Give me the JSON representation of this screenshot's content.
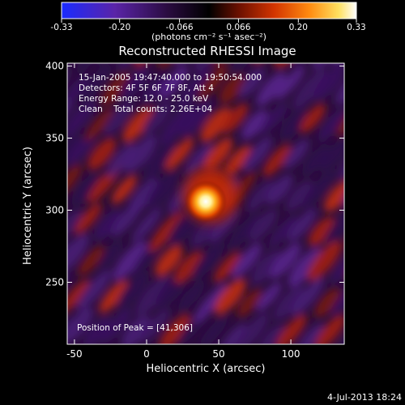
{
  "chart_data": {
    "type": "heatmap",
    "title": "Reconstructed RHESSI Image",
    "xlabel": "Heliocentric X (arcsec)",
    "ylabel": "Heliocentric Y (arcsec)",
    "xlim": [
      -55,
      137
    ],
    "ylim": [
      207,
      402
    ],
    "x_ticks": [
      -50,
      0,
      50,
      100
    ],
    "y_ticks": [
      250,
      300,
      350,
      400
    ],
    "peak": [
      41,
      306
    ],
    "stripe_angle_deg": 40,
    "colorbar": {
      "min": -0.33,
      "max": 0.33,
      "ticks": [
        "-0.33",
        "-0.20",
        "-0.066",
        "0.066",
        "0.20",
        "0.33"
      ],
      "unit_label": "(photons cm⁻² s⁻¹ asec⁻²)",
      "colors": [
        "#1a2bff",
        "#5a24a8",
        "#2a0c40",
        "#000000",
        "#6a1000",
        "#d23400",
        "#ff8a10",
        "#ffe060",
        "#ffffff"
      ]
    },
    "annotations": {
      "time_range": "15-Jan-2005 19:47:40.000 to 19:50:54.000",
      "detectors": "Detectors: 4F 5F 6F 7F 8F, Att 4",
      "energy_range": "Energy Range: 12.0 - 25.0 keV",
      "clean": "Clean    Total counts: 2.26E+04",
      "peak_position": "Position of Peak = [41,306]"
    }
  },
  "footer": {
    "date_label": "4-Jul-2013 18:24"
  }
}
